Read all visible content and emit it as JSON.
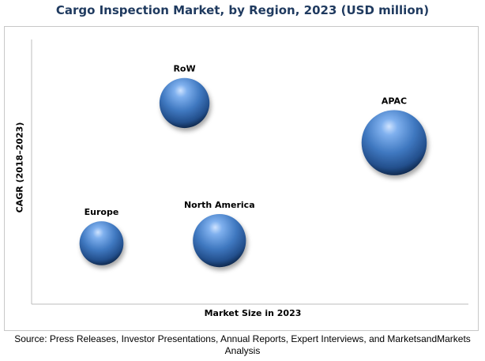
{
  "chart_data": {
    "type": "bubble",
    "title": "Cargo Inspection Market, by Region, 2023 (USD million)",
    "xlabel": "Market Size in 2023",
    "ylabel": "CAGR (2018–2023)",
    "xlim": [
      0,
      100
    ],
    "ylim": [
      0,
      100
    ],
    "grid": false,
    "legend": "none",
    "points": [
      {
        "label": "RoW",
        "x": 35,
        "y": 76,
        "size": 33
      },
      {
        "label": "APAC",
        "x": 83,
        "y": 61,
        "size": 43
      },
      {
        "label": "Europe",
        "x": 16,
        "y": 23,
        "size": 29
      },
      {
        "label": "North America",
        "x": 43,
        "y": 24,
        "size": 35
      }
    ],
    "bubble_color": "#3f78c0"
  },
  "source": "Source: Press Releases, Investor Presentations, Annual Reports, Expert Interviews, and MarketsandMarkets Analysis"
}
